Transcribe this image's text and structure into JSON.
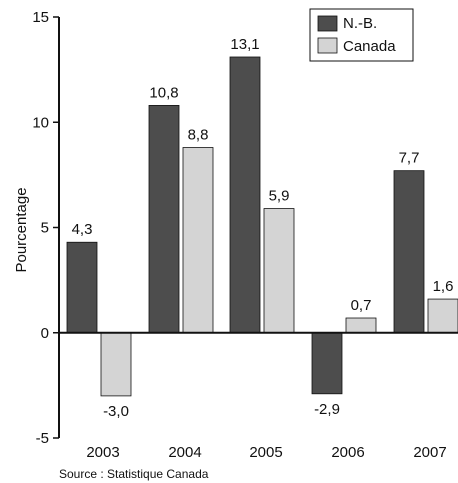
{
  "chart_data": {
    "type": "bar",
    "categories": [
      "2003",
      "2004",
      "2005",
      "2006",
      "2007"
    ],
    "series": [
      {
        "name": "N.-B.",
        "values": [
          4.3,
          10.8,
          13.1,
          -2.9,
          7.7
        ],
        "labels": [
          "4,3",
          "10,8",
          "13,1",
          "-2,9",
          "7,7"
        ],
        "color": "#4d4d4d"
      },
      {
        "name": "Canada",
        "values": [
          -3.0,
          8.8,
          5.9,
          0.7,
          1.6
        ],
        "labels": [
          "-3,0",
          "8,8",
          "5,9",
          "0,7",
          "1,6"
        ],
        "color": "#d4d4d4"
      }
    ],
    "ylabel": "Pourcentage",
    "ylim": [
      -5,
      15
    ],
    "yticks": [
      "-5",
      "0",
      "5",
      "10",
      "15"
    ],
    "grid": false,
    "legend_position": "top-right"
  },
  "source": "Source : Statistique Canada"
}
